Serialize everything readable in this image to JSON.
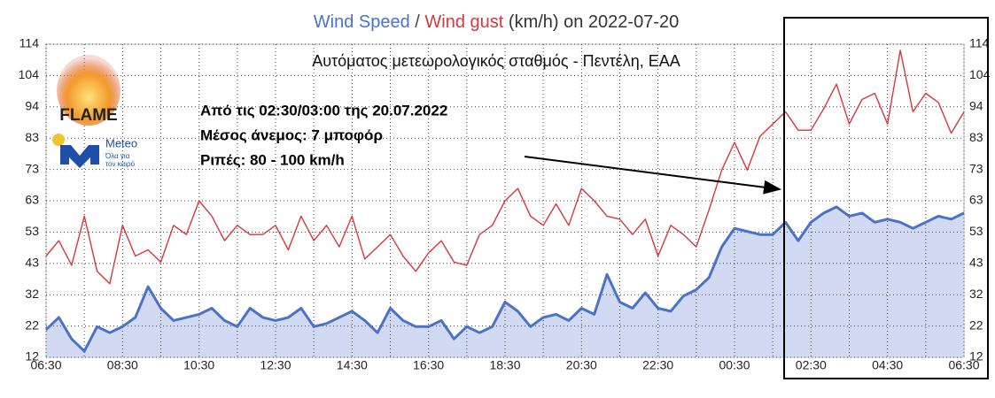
{
  "chart_data": {
    "type": "line",
    "title_separator": "/",
    "title_suffix": "(km/h) on 2022-07-20",
    "subtitle": "Αυτόματος μετεωρολογικός σταθμός - Πεντέλη, ΕΑΑ",
    "annotation": [
      "Από τις 02:30/03:00 της 20.07.2022",
      "Μέσος άνεμος: 7 μποφόρ",
      "Ριπές: 80 - 100 km/h"
    ],
    "x": [
      0,
      20,
      40,
      60,
      80,
      100,
      120,
      140,
      160,
      180,
      200,
      220,
      240,
      260,
      280,
      300,
      320,
      340,
      360,
      380,
      400,
      420,
      440,
      460,
      480,
      500,
      520,
      540,
      560,
      580,
      600,
      620,
      640,
      660,
      680,
      700,
      720,
      740,
      760,
      780,
      800,
      820,
      840,
      860,
      880,
      900,
      920,
      940,
      960,
      980,
      1000,
      1020,
      1040,
      1060,
      1080,
      1100,
      1120,
      1140,
      1160,
      1180,
      1200,
      1220,
      1240,
      1260,
      1280,
      1300,
      1320,
      1340,
      1360,
      1380,
      1400,
      1420,
      1440
    ],
    "xlim": [
      0,
      1440
    ],
    "xticks": [
      {
        "value": 0,
        "label": "06:30"
      },
      {
        "value": 120,
        "label": "08:30"
      },
      {
        "value": 240,
        "label": "10:30"
      },
      {
        "value": 360,
        "label": "12:30"
      },
      {
        "value": 480,
        "label": "14:30"
      },
      {
        "value": 600,
        "label": "16:30"
      },
      {
        "value": 720,
        "label": "18:30"
      },
      {
        "value": 840,
        "label": "20:30"
      },
      {
        "value": 960,
        "label": "22:30"
      },
      {
        "value": 1080,
        "label": "00:30"
      },
      {
        "value": 1200,
        "label": "02:30"
      },
      {
        "value": 1320,
        "label": "04:30"
      },
      {
        "value": 1440,
        "label": "06:30"
      }
    ],
    "x_minor_ticks": [
      60,
      180,
      300,
      420,
      540,
      660,
      780,
      900,
      1020,
      1140,
      1260,
      1380
    ],
    "ylim": [
      12,
      114
    ],
    "yticks": [
      12,
      {
        "value": 22.2,
        "label": "22"
      },
      {
        "value": 32.4,
        "label": "32"
      },
      {
        "value": 42.6,
        "label": "43"
      },
      {
        "value": 52.8,
        "label": "53"
      },
      63,
      {
        "value": 73.2,
        "label": "73"
      },
      {
        "value": 83.4,
        "label": "83"
      },
      {
        "value": 93.6,
        "label": "94"
      },
      {
        "value": 103.8,
        "label": "104"
      },
      114
    ],
    "grid": true,
    "series": [
      {
        "name": "Wind Speed",
        "color": "#4a72c8",
        "fill": "#cdd6f2",
        "values": [
          21,
          25,
          18,
          14,
          22,
          20,
          22,
          25,
          35,
          28,
          24,
          25,
          26,
          28,
          24,
          22,
          28,
          25,
          24,
          25,
          28,
          22,
          23,
          25,
          27,
          24,
          20,
          28,
          24,
          22,
          22,
          24,
          18,
          22,
          20,
          22,
          30,
          27,
          22,
          25,
          26,
          24,
          28,
          26,
          39,
          30,
          28,
          33,
          28,
          27,
          32,
          34,
          38,
          48,
          54,
          53,
          52,
          52,
          56,
          50,
          56,
          59,
          61,
          58,
          59,
          56,
          57,
          56,
          54,
          56,
          58,
          57,
          59
        ]
      },
      {
        "name": "Wind gust",
        "color": "#d9363e",
        "values": [
          45,
          50,
          42,
          58,
          40,
          36,
          55,
          45,
          47,
          43,
          55,
          52,
          63,
          58,
          50,
          55,
          52,
          52,
          55,
          47,
          58,
          50,
          55,
          48,
          58,
          44,
          48,
          52,
          45,
          40,
          46,
          50,
          43,
          42,
          52,
          55,
          63,
          67,
          58,
          55,
          62,
          55,
          67,
          63,
          58,
          57,
          52,
          57,
          45,
          55,
          52,
          48,
          60,
          73,
          82,
          73,
          84,
          88,
          92,
          86,
          86,
          93,
          101,
          88,
          96,
          98,
          88,
          112,
          92,
          98,
          95,
          85,
          92
        ]
      }
    ]
  },
  "logos": {
    "flame": "FLAME",
    "meteo": "Meteo",
    "meteo_tagline": [
      "Όλα για",
      "τον καιρό"
    ]
  }
}
